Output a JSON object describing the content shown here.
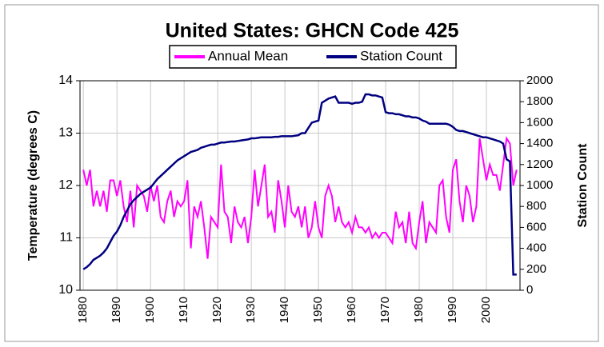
{
  "chart_data": {
    "type": "line",
    "title": "United States: GHCN Code 425",
    "y_label": "Temperature (degrees C)",
    "y2_label": "Station Count",
    "x": [
      1880,
      1881,
      1882,
      1883,
      1884,
      1885,
      1886,
      1887,
      1888,
      1889,
      1890,
      1891,
      1892,
      1893,
      1894,
      1895,
      1896,
      1897,
      1898,
      1899,
      1900,
      1901,
      1902,
      1903,
      1904,
      1905,
      1906,
      1907,
      1908,
      1909,
      1910,
      1911,
      1912,
      1913,
      1914,
      1915,
      1916,
      1917,
      1918,
      1919,
      1920,
      1921,
      1922,
      1923,
      1924,
      1925,
      1926,
      1927,
      1928,
      1929,
      1930,
      1931,
      1932,
      1933,
      1934,
      1935,
      1936,
      1937,
      1938,
      1939,
      1940,
      1941,
      1942,
      1943,
      1944,
      1945,
      1946,
      1947,
      1948,
      1949,
      1950,
      1951,
      1952,
      1953,
      1954,
      1955,
      1956,
      1957,
      1958,
      1959,
      1960,
      1961,
      1962,
      1963,
      1964,
      1965,
      1966,
      1967,
      1968,
      1969,
      1970,
      1971,
      1972,
      1973,
      1974,
      1975,
      1976,
      1977,
      1978,
      1979,
      1980,
      1981,
      1982,
      1983,
      1984,
      1985,
      1986,
      1987,
      1988,
      1989,
      1990,
      1991,
      1992,
      1993,
      1994,
      1995,
      1996,
      1997,
      1998,
      1999,
      2000,
      2001,
      2002,
      2003,
      2004,
      2005,
      2006,
      2007,
      2008,
      2009
    ],
    "series": [
      {
        "name": "Annual Mean",
        "color": "#ff00ff",
        "values": [
          12.3,
          12.0,
          12.3,
          11.6,
          11.9,
          11.6,
          11.9,
          11.5,
          12.1,
          12.1,
          11.8,
          12.1,
          11.6,
          11.3,
          11.9,
          11.2,
          12.0,
          11.9,
          11.8,
          11.5,
          12.0,
          11.7,
          12.0,
          11.4,
          11.3,
          11.7,
          11.9,
          11.4,
          11.7,
          11.6,
          11.7,
          12.1,
          10.8,
          11.6,
          11.4,
          11.7,
          11.2,
          10.6,
          11.4,
          11.3,
          11.2,
          12.4,
          11.5,
          11.4,
          10.9,
          11.6,
          11.3,
          11.2,
          11.4,
          10.9,
          11.4,
          12.3,
          11.6,
          12.0,
          12.4,
          11.4,
          11.5,
          11.1,
          12.1,
          11.7,
          11.2,
          12.0,
          11.5,
          11.4,
          11.6,
          11.2,
          11.6,
          11.0,
          11.2,
          11.7,
          11.2,
          11.0,
          11.8,
          12.0,
          11.8,
          11.3,
          11.6,
          11.3,
          11.2,
          11.3,
          11.1,
          11.4,
          11.2,
          11.2,
          11.1,
          11.2,
          11.0,
          11.1,
          11.0,
          11.1,
          11.1,
          11.0,
          10.9,
          11.5,
          11.2,
          11.3,
          10.9,
          11.5,
          10.9,
          10.8,
          11.3,
          11.7,
          10.9,
          11.3,
          11.2,
          11.1,
          12.0,
          12.1,
          11.4,
          11.1,
          12.3,
          12.5,
          11.7,
          11.3,
          12.0,
          11.8,
          11.3,
          11.6,
          12.9,
          12.5,
          12.1,
          12.4,
          12.2,
          12.2,
          11.9,
          12.4,
          12.9,
          12.8,
          12.0,
          12.3
        ]
      },
      {
        "name": "Station Count",
        "color": "#000080",
        "axis": "y2",
        "values": [
          200,
          220,
          250,
          290,
          310,
          330,
          360,
          400,
          460,
          520,
          560,
          620,
          700,
          760,
          820,
          860,
          890,
          920,
          940,
          960,
          980,
          1020,
          1060,
          1090,
          1120,
          1150,
          1180,
          1210,
          1240,
          1260,
          1280,
          1300,
          1320,
          1330,
          1340,
          1360,
          1370,
          1380,
          1390,
          1390,
          1400,
          1410,
          1410,
          1415,
          1420,
          1420,
          1425,
          1430,
          1435,
          1440,
          1450,
          1450,
          1455,
          1460,
          1460,
          1460,
          1460,
          1465,
          1465,
          1470,
          1470,
          1470,
          1470,
          1475,
          1480,
          1500,
          1500,
          1550,
          1600,
          1610,
          1620,
          1790,
          1810,
          1830,
          1840,
          1850,
          1790,
          1790,
          1790,
          1790,
          1780,
          1790,
          1790,
          1800,
          1870,
          1870,
          1860,
          1860,
          1850,
          1840,
          1700,
          1690,
          1690,
          1680,
          1680,
          1670,
          1660,
          1660,
          1650,
          1650,
          1640,
          1620,
          1610,
          1590,
          1590,
          1590,
          1590,
          1590,
          1590,
          1580,
          1560,
          1530,
          1520,
          1520,
          1510,
          1500,
          1490,
          1480,
          1470,
          1460,
          1460,
          1450,
          1440,
          1430,
          1420,
          1400,
          1250,
          1230,
          150,
          150
        ]
      }
    ],
    "xlim": [
      1879,
      2010
    ],
    "xticks": [
      1880,
      1890,
      1900,
      1910,
      1920,
      1930,
      1940,
      1950,
      1960,
      1970,
      1980,
      1990,
      2000
    ],
    "ylim": [
      10,
      14
    ],
    "yticks": [
      10,
      11,
      12,
      13,
      14
    ],
    "y2lim": [
      0,
      2000
    ],
    "y2ticks": [
      0,
      200,
      400,
      600,
      800,
      1000,
      1200,
      1400,
      1600,
      1800,
      2000
    ],
    "grid": true
  }
}
